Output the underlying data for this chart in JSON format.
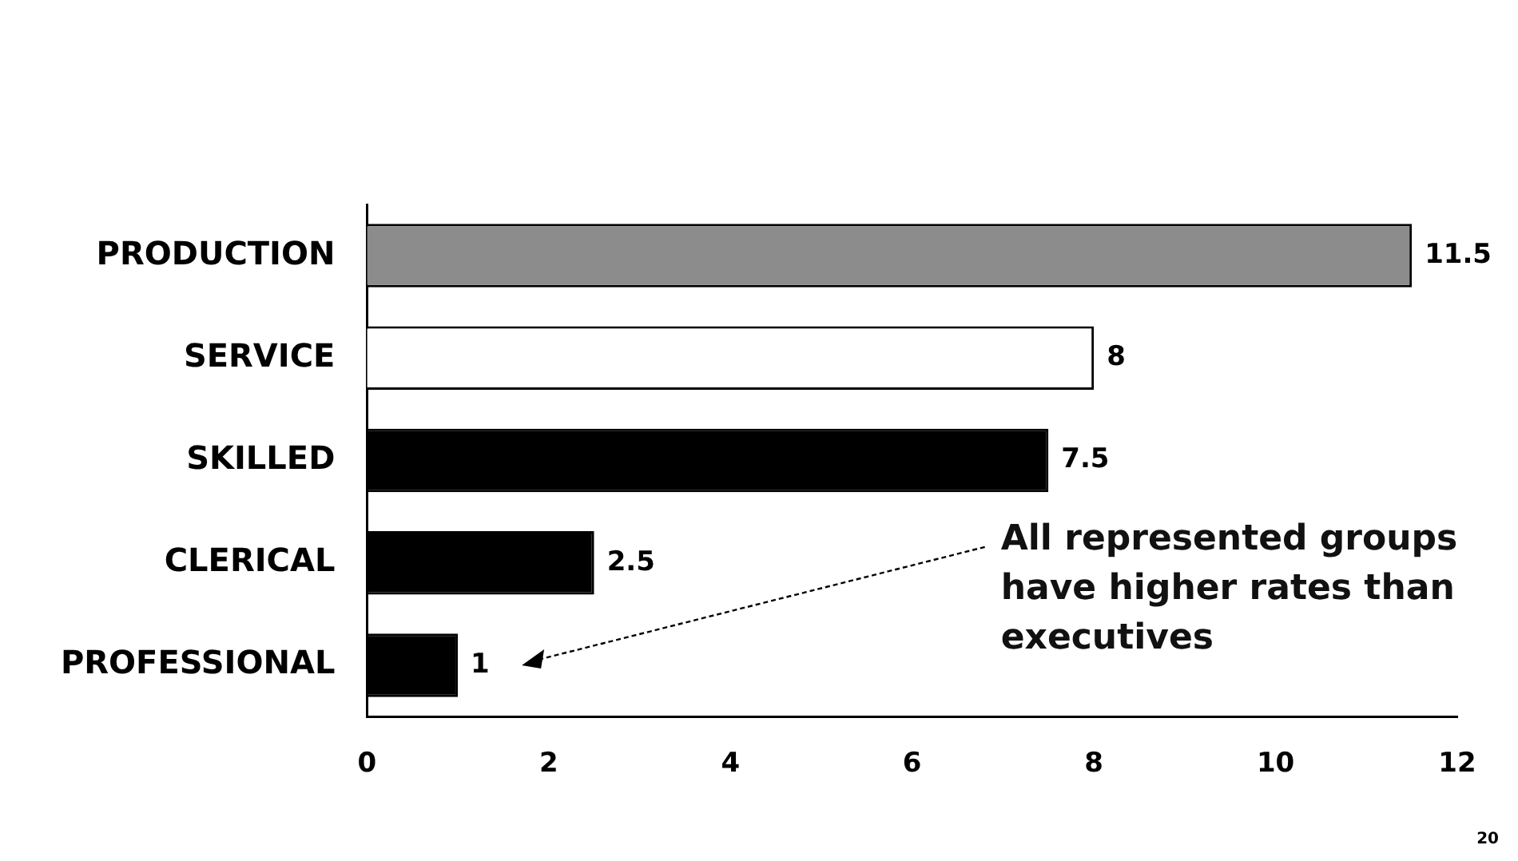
{
  "chart_data": {
    "type": "bar",
    "orientation": "horizontal",
    "categories": [
      "PRODUCTION",
      "SERVICE",
      "SKILLED",
      "CLERICAL",
      "PROFESSIONAL"
    ],
    "values": [
      11.5,
      8,
      7.5,
      2.5,
      1
    ],
    "colors": [
      "#8c8c8c",
      "#ffffff",
      "#000000",
      "#000000",
      "#000000"
    ],
    "xlim": [
      0,
      12
    ],
    "xticks": [
      0,
      2,
      4,
      6,
      8,
      10,
      12
    ],
    "grid": false,
    "legend": false,
    "data_labels": true,
    "annotations": [
      "All represented groups have higher rates than executives",
      "20"
    ]
  }
}
